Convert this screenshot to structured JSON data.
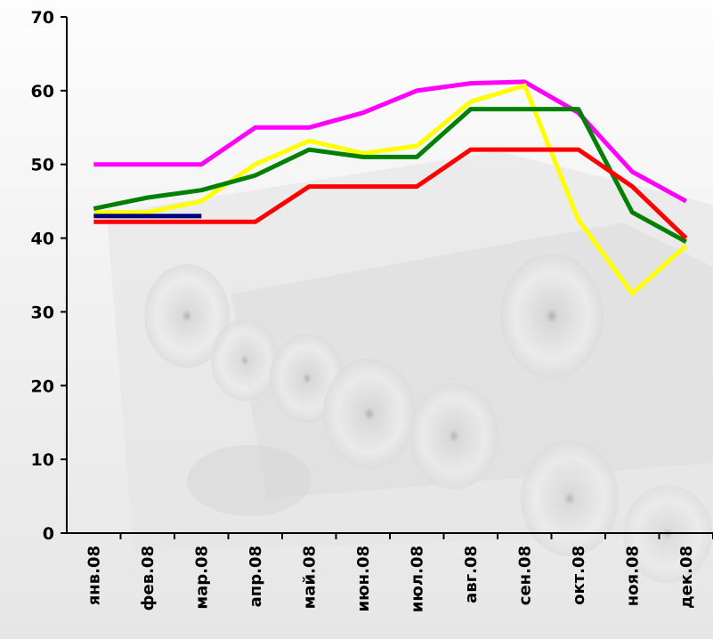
{
  "chart_data": {
    "type": "line",
    "title": "",
    "xlabel": "",
    "ylabel": "",
    "ylim": [
      0,
      70
    ],
    "yticks": [
      0,
      10,
      20,
      30,
      40,
      50,
      60,
      70
    ],
    "ytick_labels": [
      "0",
      "10",
      "20",
      "30",
      "40",
      "50",
      "60",
      "70"
    ],
    "categories": [
      "янв.08",
      "фев.08",
      "мар.08",
      "апр.08",
      "май.08",
      "июн.08",
      "июл.08",
      "авг.08",
      "сен.08",
      "окт.08",
      "ноя.08",
      "дек.08"
    ],
    "grid": false,
    "legend": "none",
    "background": "faded grayscale photo of paper rolls",
    "series": [
      {
        "color": "#ff00ff",
        "values": [
          50,
          50,
          50,
          55,
          55,
          57,
          60,
          61,
          61.2,
          57,
          49,
          45
        ]
      },
      {
        "color": "#ffff00",
        "values": [
          43.5,
          43.5,
          45,
          50,
          53.2,
          51.5,
          52.5,
          58.5,
          60.7,
          42.5,
          32.5,
          39
        ]
      },
      {
        "color": "#008000",
        "values": [
          44,
          45.5,
          46.5,
          48.5,
          52,
          51,
          51,
          57.5,
          57.5,
          57.5,
          43.5,
          39.5
        ]
      },
      {
        "color": "#ff0000",
        "values": [
          42.2,
          42.2,
          42.2,
          42.2,
          47,
          47,
          47,
          52,
          52,
          52,
          47,
          40
        ]
      },
      {
        "color": "#000080",
        "values": [
          43,
          43,
          43,
          null,
          null,
          null,
          null,
          null,
          null,
          null,
          null,
          null
        ]
      }
    ]
  }
}
